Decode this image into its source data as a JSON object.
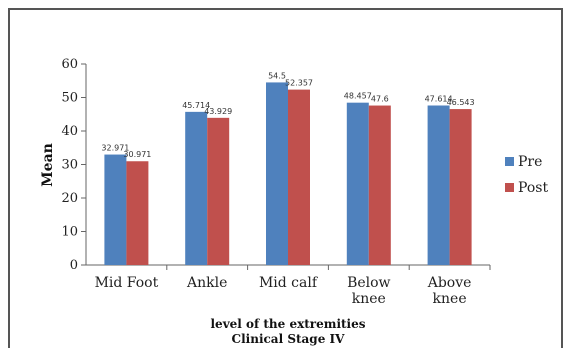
{
  "chart_data": {
    "type": "bar",
    "categories": [
      [
        "Mid Foot"
      ],
      [
        "Ankle"
      ],
      [
        "Mid calf"
      ],
      [
        "Below",
        "knee"
      ],
      [
        "Above",
        "knee"
      ]
    ],
    "series": [
      {
        "name": "Pre",
        "color": "#4f81bd",
        "values": [
          32.971,
          45.714,
          54.5,
          48.457,
          47.614
        ],
        "labels": [
          "32.971",
          "45.714",
          "54.5",
          "48.457",
          "47.614"
        ]
      },
      {
        "name": "Post",
        "color": "#c0504d",
        "values": [
          30.971,
          43.929,
          52.357,
          47.6,
          46.543
        ],
        "labels": [
          "30.971",
          "43.929",
          "52.357",
          "47.6",
          "46.543"
        ]
      }
    ],
    "ylabel": "Mean",
    "xlabel": "level of the extremities",
    "subtitle": "Clinical Stage IV",
    "ylim": [
      0,
      60
    ],
    "yticks": [
      0,
      10,
      20,
      30,
      40,
      50,
      60
    ],
    "grid": false,
    "legend": "right"
  }
}
